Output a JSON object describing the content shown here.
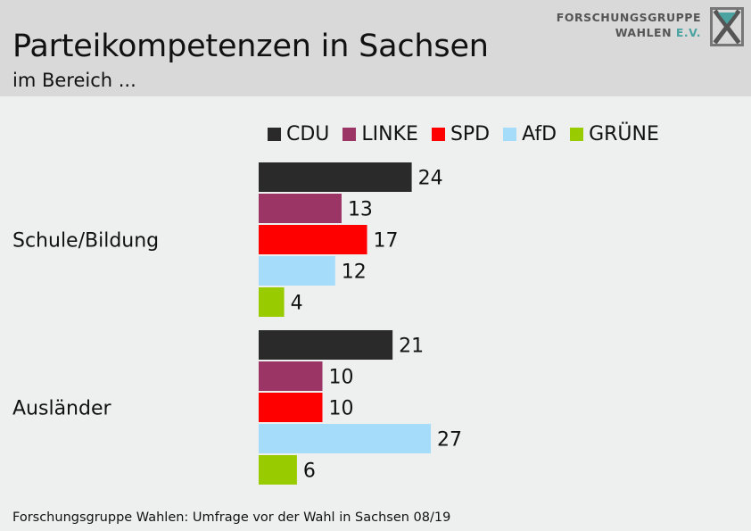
{
  "header": {
    "title": "Parteikompetenzen in Sachsen",
    "subtitle": "im Bereich ..."
  },
  "logo": {
    "line1": "FORSCHUNGSGRUPPE",
    "line2_main": "WAHLEN",
    "line2_suffix": "E.V."
  },
  "colors": {
    "CDU": "#2a2a2a",
    "LINKE": "#9b3565",
    "SPD": "#ff0000",
    "AfD": "#a4dcfa",
    "GRÜNE": "#99cc00"
  },
  "chart_data": {
    "type": "bar",
    "orientation": "horizontal",
    "categories": [
      "Schule/Bildung",
      "Ausländer"
    ],
    "series": [
      {
        "name": "CDU",
        "values": [
          24,
          21
        ],
        "color": "#2a2a2a"
      },
      {
        "name": "LINKE",
        "values": [
          13,
          10
        ],
        "color": "#9b3565"
      },
      {
        "name": "SPD",
        "values": [
          17,
          10
        ],
        "color": "#ff0000"
      },
      {
        "name": "AfD",
        "values": [
          12,
          27
        ],
        "color": "#a4dcfa"
      },
      {
        "name": "GRÜNE",
        "values": [
          4,
          6
        ],
        "color": "#99cc00"
      }
    ],
    "title": "Parteikompetenzen in Sachsen",
    "subtitle": "im Bereich ...",
    "xlabel": "",
    "ylabel": "",
    "xlim": [
      0,
      30
    ],
    "grid": false,
    "legend": "top",
    "data_labels": true
  },
  "footer": {
    "source": "Forschungsgruppe Wahlen: Umfrage vor der Wahl in Sachsen 08/19"
  }
}
